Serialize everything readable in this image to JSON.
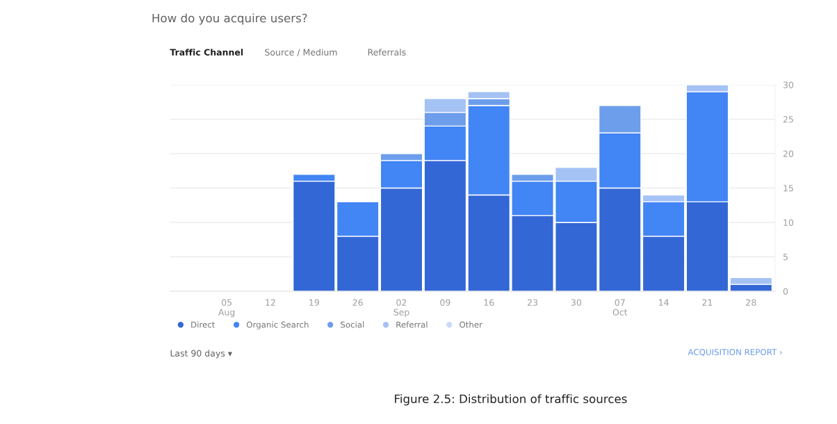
{
  "chart_data": {
    "type": "bar",
    "stacked": true,
    "title": "How do you acquire users?",
    "categories": [
      "05\nAug",
      "12",
      "19",
      "26",
      "02\nSep",
      "09",
      "16",
      "23",
      "30",
      "07\nOct",
      "14",
      "21",
      "28"
    ],
    "series": [
      {
        "name": "Direct",
        "color": "#3367d6",
        "values": [
          null,
          null,
          16,
          8,
          15,
          19,
          14,
          11,
          10,
          15,
          8,
          13,
          1
        ]
      },
      {
        "name": "Organic Search",
        "color": "#4285f4",
        "values": [
          null,
          null,
          1,
          5,
          4,
          5,
          13,
          5,
          6,
          8,
          5,
          16,
          null
        ]
      },
      {
        "name": "Social",
        "color": "#6d9eeb",
        "values": [
          null,
          null,
          null,
          null,
          1,
          2,
          1,
          1,
          null,
          4,
          null,
          null,
          null
        ]
      },
      {
        "name": "Referral",
        "color": "#a4c2f4",
        "values": [
          null,
          null,
          null,
          null,
          null,
          2,
          1,
          null,
          2,
          null,
          1,
          1,
          1
        ]
      },
      {
        "name": "Other",
        "color": "#c9daf8",
        "values": [
          null,
          null,
          null,
          null,
          null,
          null,
          null,
          null,
          null,
          null,
          null,
          null,
          null
        ]
      }
    ],
    "ylim": [
      0,
      30
    ],
    "yticks": [
      0,
      5,
      10,
      15,
      20,
      25,
      30
    ],
    "grid": "y",
    "legend": "bottom left",
    "annotations": [
      "Traffic Channel",
      "Source / Medium",
      "Referrals",
      "Last 90 days ▾",
      "ACQUISITION REPORT ›",
      "Figure 2.5: Distribution of traffic sources"
    ]
  }
}
